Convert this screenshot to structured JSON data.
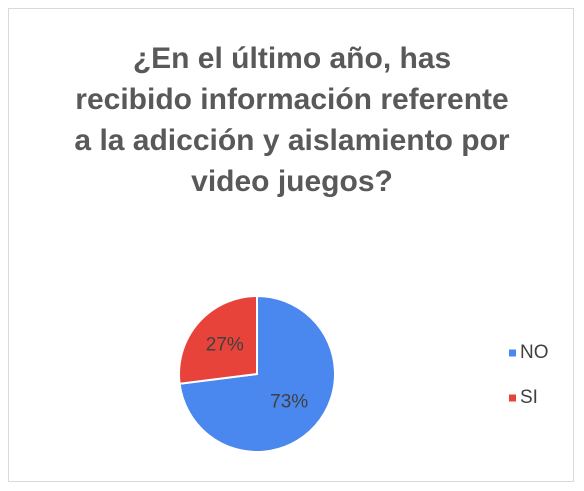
{
  "chart_data": {
    "type": "pie",
    "title": "¿En el último año, has recibido información referente a la adicción y aislamiento por video juegos?",
    "categories": [
      "NO",
      "SI"
    ],
    "values": [
      73,
      27
    ],
    "value_labels": [
      "73%",
      "27%"
    ],
    "colors": [
      "#4a87ef",
      "#e8433a"
    ],
    "legend": "right"
  }
}
